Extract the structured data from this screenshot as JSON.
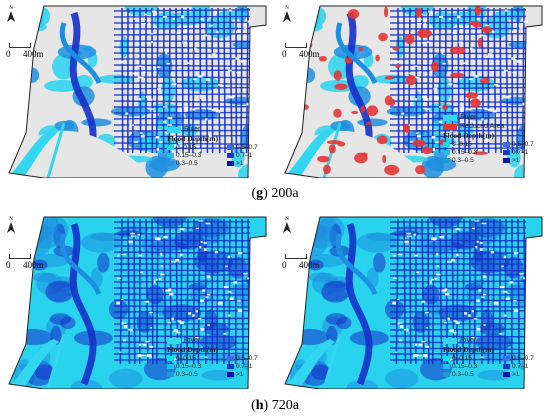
{
  "panels": [
    {
      "north": "N",
      "scale_start": "0",
      "scale_end": "400m",
      "legend_river": "River",
      "legend_reduced": "",
      "legend_title": "Flood Depth(m)",
      "show_reduced": false
    },
    {
      "north": "N",
      "scale_start": "0",
      "scale_end": "400m",
      "legend_river": "River",
      "legend_reduced": "Reduced Area",
      "legend_title": "Flood Depth(m)",
      "show_reduced": true
    },
    {
      "north": "N",
      "scale_start": "0",
      "scale_end": "400m",
      "legend_river": "River",
      "legend_reduced": "",
      "legend_title": "Flood Depth(m)",
      "show_reduced": false
    },
    {
      "north": "N",
      "scale_start": "0",
      "scale_end": "400m",
      "legend_river": "River",
      "legend_reduced": "",
      "legend_title": "Flood Depth(m)",
      "show_reduced": false
    }
  ],
  "depth_classes": [
    {
      "label": "0–0.15",
      "color": "#00e5ee"
    },
    {
      "label": "0.5–0.7",
      "color": "#3a6be0"
    },
    {
      "label": "0.15–0.3",
      "color": "#19c3e6"
    },
    {
      "label": "0.7–1",
      "color": "#1b35c8"
    },
    {
      "label": "0.3–0.5",
      "color": "#1f9ad8"
    },
    {
      "label": ">1",
      "color": "#0a10a8"
    }
  ],
  "colors": {
    "river": "#33d6f0",
    "reduced": "#e53535",
    "land": "#e6e6e6",
    "water_light": "#29d3ee",
    "water_mid": "#1e8fe0",
    "water_dark": "#1530c8"
  },
  "captions": [
    {
      "letter": "g",
      "text": " 200a"
    },
    {
      "letter": "h",
      "text": " 720a"
    }
  ]
}
